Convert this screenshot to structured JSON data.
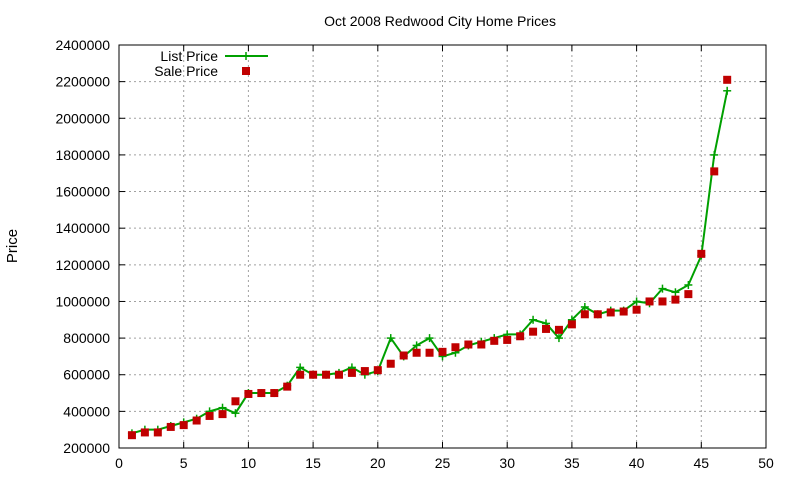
{
  "chart_data": {
    "type": "line",
    "title": "Oct 2008 Redwood City Home Prices",
    "xlabel": "",
    "ylabel": "Price",
    "xlim": [
      0,
      50
    ],
    "ylim": [
      200000,
      2400000
    ],
    "xticks": [
      0,
      5,
      10,
      15,
      20,
      25,
      30,
      35,
      40,
      45,
      50
    ],
    "yticks": [
      200000,
      400000,
      600000,
      800000,
      1000000,
      1200000,
      1400000,
      1600000,
      1800000,
      2000000,
      2200000,
      2400000
    ],
    "grid": true,
    "legend_position": "top-left",
    "x": [
      1,
      2,
      3,
      4,
      5,
      6,
      7,
      8,
      9,
      10,
      11,
      12,
      13,
      14,
      15,
      16,
      17,
      18,
      19,
      20,
      21,
      22,
      23,
      24,
      25,
      26,
      27,
      28,
      29,
      30,
      31,
      32,
      33,
      34,
      35,
      36,
      37,
      38,
      39,
      40,
      41,
      42,
      43,
      44,
      45,
      46,
      47
    ],
    "series": [
      {
        "name": "List Price",
        "style": "line+cross",
        "color": "#00a000",
        "values": [
          280000,
          300000,
          300000,
          320000,
          340000,
          360000,
          400000,
          420000,
          390000,
          500000,
          500000,
          500000,
          540000,
          640000,
          600000,
          600000,
          610000,
          640000,
          600000,
          620000,
          800000,
          700000,
          760000,
          800000,
          700000,
          720000,
          760000,
          780000,
          800000,
          820000,
          820000,
          900000,
          880000,
          800000,
          900000,
          970000,
          930000,
          950000,
          950000,
          1000000,
          990000,
          1070000,
          1050000,
          1090000,
          1250000,
          1800000,
          2150000
        ]
      },
      {
        "name": "Sale Price",
        "style": "square",
        "color": "#c00000",
        "values": [
          270000,
          285000,
          285000,
          315000,
          325000,
          350000,
          375000,
          385000,
          455000,
          495000,
          500000,
          500000,
          535000,
          600000,
          600000,
          600000,
          600000,
          610000,
          620000,
          625000,
          660000,
          705000,
          720000,
          720000,
          725000,
          750000,
          765000,
          765000,
          785000,
          790000,
          810000,
          835000,
          850000,
          845000,
          875000,
          930000,
          930000,
          940000,
          945000,
          955000,
          1000000,
          1000000,
          1010000,
          1040000,
          1260000,
          1710000,
          2210000
        ]
      }
    ]
  }
}
